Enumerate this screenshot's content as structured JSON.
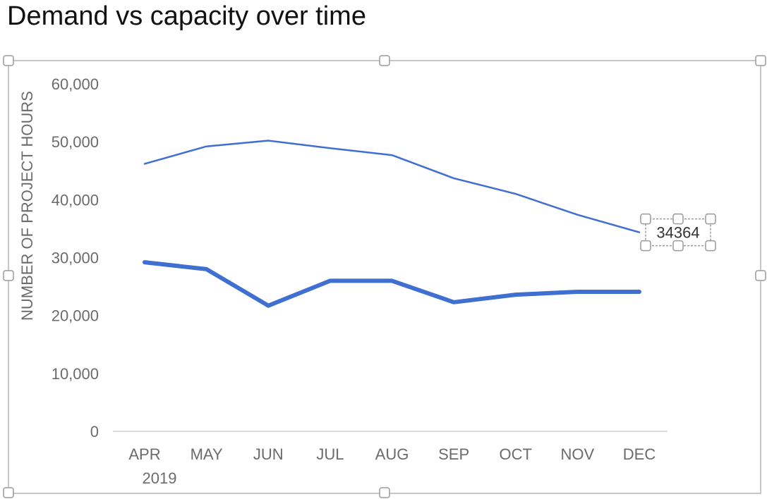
{
  "chart_data": {
    "type": "line",
    "title": "Demand vs capacity over time",
    "ylabel": "NUMBER OF PROJECT HOURS",
    "xlabel": "",
    "categories": [
      "APR",
      "MAY",
      "JUN",
      "JUL",
      "AUG",
      "SEP",
      "OCT",
      "NOV",
      "DEC"
    ],
    "x_year_label": "2019",
    "ylim": [
      0,
      60000
    ],
    "yticks": [
      0,
      10000,
      20000,
      30000,
      40000,
      50000,
      60000
    ],
    "ytick_labels": [
      "0",
      "10,000",
      "20,000",
      "30,000",
      "40,000",
      "50,000",
      "60,000"
    ],
    "grid": false,
    "legend": "none",
    "series": [
      {
        "values": [
          46200,
          49200,
          50200,
          48900,
          47700,
          43700,
          41000,
          37400,
          34364
        ],
        "color": "#3f6fd0"
      },
      {
        "values": [
          29200,
          28000,
          21700,
          26000,
          26000,
          22300,
          23600,
          24100,
          24100
        ],
        "color": "#3f6fd0"
      }
    ],
    "annotation": {
      "series_index": 0,
      "point_index": 8,
      "text": "34364"
    }
  }
}
